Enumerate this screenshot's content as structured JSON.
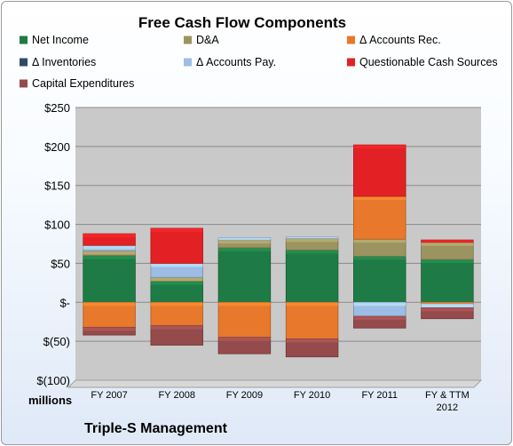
{
  "chart_data": {
    "type": "bar",
    "stacked": true,
    "title": "Free Cash Flow Components",
    "categories": [
      "FY 2007",
      "FY 2008",
      "FY 2009",
      "FY 2010",
      "FY 2011",
      "FY & TTM 2012"
    ],
    "ylim": [
      -100,
      250
    ],
    "yticks": [
      250,
      200,
      150,
      100,
      50,
      0,
      -50,
      -100
    ],
    "ytick_labels": [
      "$250",
      "$200",
      "$150",
      "$100",
      "$50",
      "$-",
      "$(50)",
      "$(100)"
    ],
    "unit_label": "millions",
    "footer": "Triple-S Management",
    "grid": true,
    "legend_position": "top",
    "series": [
      {
        "name": "Net Income",
        "color": "#1e7b45",
        "values": [
          60,
          27,
          70,
          67,
          59,
          55
        ]
      },
      {
        "name": "D&A",
        "color": "#9c9460",
        "values": [
          6,
          5,
          10,
          15,
          22,
          22
        ]
      },
      {
        "name": "Δ Accounts Rec.",
        "color": "#e8782b",
        "values": [
          -32,
          -30,
          -45,
          -47,
          55,
          -2
        ]
      },
      {
        "name": "Δ Inventories",
        "color": "#2f4a68",
        "values": [
          0,
          0,
          0,
          0,
          0,
          0
        ]
      },
      {
        "name": "Δ Accounts Pay.",
        "color": "#9dbde4",
        "values": [
          7,
          18,
          3,
          2,
          -18,
          -5
        ]
      },
      {
        "name": "Questionable Cash Sources",
        "color": "#e32124",
        "values": [
          15,
          45,
          0,
          0,
          66,
          3
        ]
      },
      {
        "name": "Capital Expenditures",
        "color": "#954a4c",
        "values": [
          -10,
          -25,
          -21,
          -23,
          -15,
          -14
        ]
      }
    ]
  }
}
